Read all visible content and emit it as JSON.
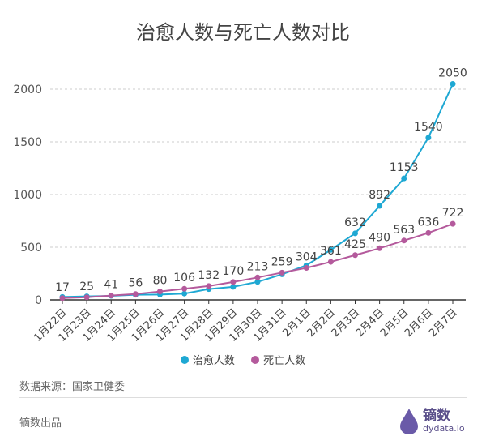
{
  "chart_data": {
    "type": "line",
    "title": "治愈人数与死亡人数对比",
    "categories": [
      "1月22日",
      "1月23日",
      "1月24日",
      "1月25日",
      "1月26日",
      "1月27日",
      "1月28日",
      "1月29日",
      "1月30日",
      "1月31日",
      "2月1日",
      "2月2日",
      "2月3日",
      "2月4日",
      "2月5日",
      "2月6日",
      "2月7日"
    ],
    "series": [
      {
        "name": "治愈人数",
        "color": "#1ea8d3",
        "values": [
          28,
          34,
          38,
          49,
          51,
          60,
          103,
          124,
          171,
          243,
          328,
          475,
          632,
          892,
          1153,
          1540,
          2050
        ],
        "labeled_from_index": 12
      },
      {
        "name": "死亡人数",
        "color": "#b45a9c",
        "values": [
          17,
          25,
          41,
          56,
          80,
          106,
          132,
          170,
          213,
          259,
          304,
          361,
          425,
          490,
          563,
          636,
          722
        ],
        "labeled_from_index": 0
      }
    ],
    "yticks": [
      0,
      500,
      1000,
      1500,
      2000
    ],
    "ylim": [
      0,
      2100
    ],
    "grid": true,
    "legend": "bottom"
  },
  "footer": {
    "source": "数据来源：国家卫健委",
    "credit": "镝数出品",
    "logo_name": "镝数",
    "logo_url": "dydata.io"
  }
}
